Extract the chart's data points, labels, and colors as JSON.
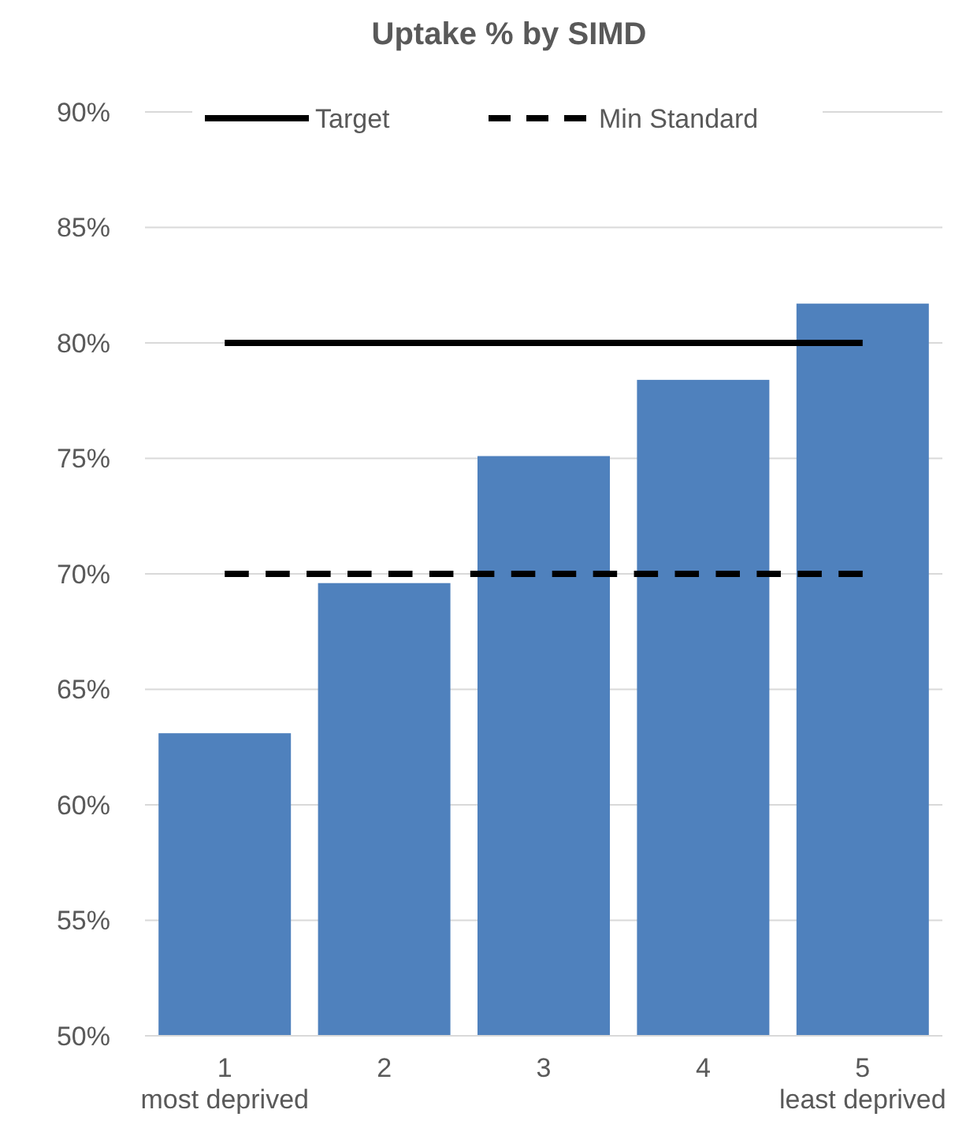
{
  "chart_data": {
    "type": "bar",
    "title": "Uptake % by SIMD",
    "categories": [
      "1 most deprived",
      "2",
      "3",
      "4",
      "5 least deprived"
    ],
    "series": [
      {
        "color": "#4f81bd",
        "values": [
          63.1,
          69.6,
          75.1,
          78.4,
          81.7
        ]
      },
      {
        "type": "line",
        "name": "Target",
        "color": "#000000",
        "line_style": "solid",
        "values": [
          80,
          80,
          80,
          80,
          80
        ]
      },
      {
        "type": "line",
        "name": "Min Standard",
        "color": "#000000",
        "line_style": "dashed",
        "values": [
          70,
          70,
          70,
          70,
          70
        ]
      }
    ],
    "ylim": [
      50,
      90
    ],
    "yticks": [
      {
        "value": 50,
        "label": "50%"
      },
      {
        "value": 55,
        "label": "55%"
      },
      {
        "value": 60,
        "label": "60%"
      },
      {
        "value": 65,
        "label": "65%"
      },
      {
        "value": 70,
        "label": "70%"
      },
      {
        "value": 75,
        "label": "75%"
      },
      {
        "value": 80,
        "label": "80%"
      },
      {
        "value": 85,
        "label": "85%"
      },
      {
        "value": 90,
        "label": "90%"
      }
    ],
    "grid": "y",
    "legend": "top",
    "marker": "none"
  }
}
